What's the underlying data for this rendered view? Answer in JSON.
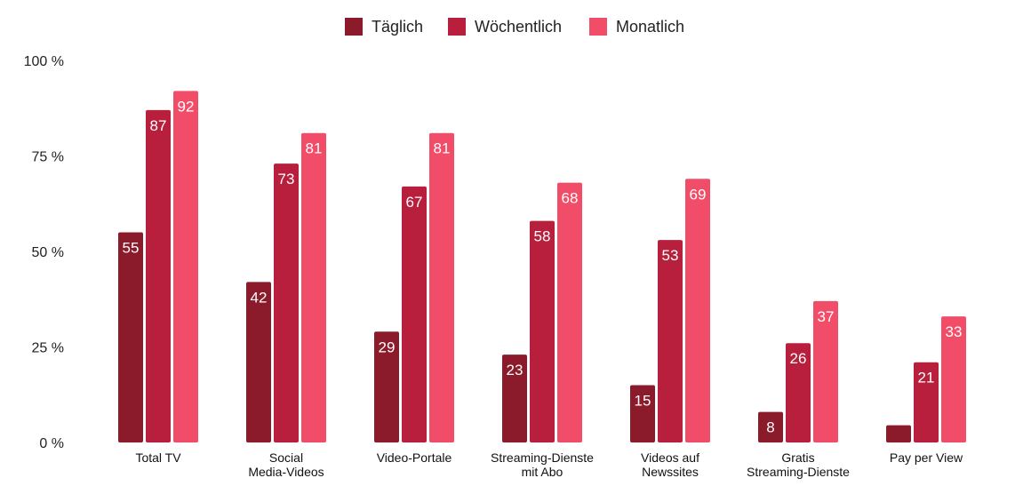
{
  "chart_data": {
    "type": "bar",
    "categories": [
      [
        "Total TV"
      ],
      [
        "Social",
        "Media-Videos"
      ],
      [
        "Video-Portale"
      ],
      [
        "Streaming-Dienste",
        "mit Abo"
      ],
      [
        "Videos auf",
        "Newssites"
      ],
      [
        "Gratis",
        "Streaming-Dienste"
      ],
      [
        "Pay per View"
      ]
    ],
    "series": [
      {
        "name": "Täglich",
        "color": "#8b1a2b",
        "values": [
          55,
          42,
          29,
          23,
          15,
          8,
          4.5
        ],
        "labels": [
          "55",
          "42",
          "29",
          "23",
          "15",
          "8",
          ""
        ]
      },
      {
        "name": "Wöchentlich",
        "color": "#b81f3c",
        "values": [
          87,
          73,
          67,
          58,
          53,
          26,
          21
        ],
        "labels": [
          "87",
          "73",
          "67",
          "58",
          "53",
          "26",
          "21"
        ]
      },
      {
        "name": "Monatlich",
        "color": "#f24d68",
        "values": [
          92,
          81,
          81,
          68,
          69,
          37,
          33
        ],
        "labels": [
          "92",
          "81",
          "81",
          "68",
          "69",
          "37",
          "33"
        ]
      }
    ],
    "yticks": [
      {
        "value": 0,
        "label": "0 %"
      },
      {
        "value": 25,
        "label": "25 %"
      },
      {
        "value": 50,
        "label": "50 %"
      },
      {
        "value": 75,
        "label": "75 %"
      },
      {
        "value": 100,
        "label": "100 %"
      }
    ],
    "ylim": [
      0,
      100
    ],
    "grid": false,
    "legend_position": "top-center"
  }
}
